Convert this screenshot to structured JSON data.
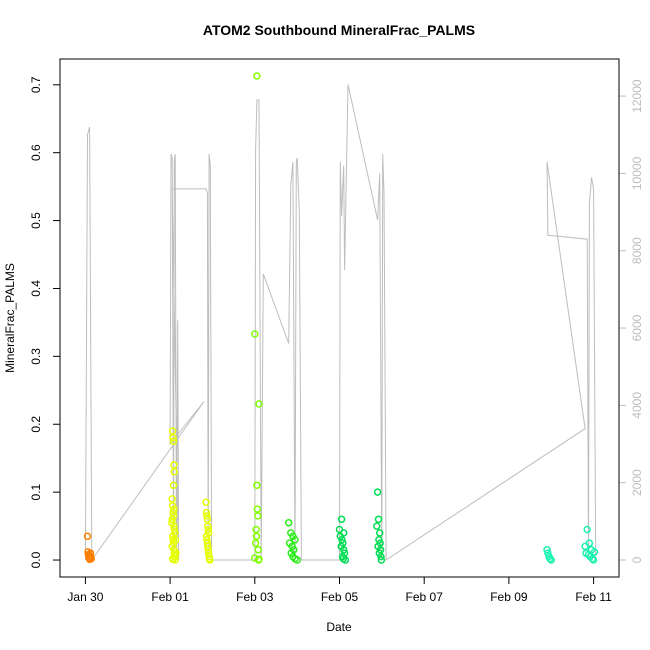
{
  "chart_data": {
    "type": "scatter",
    "title": "ATOM2 Southbound MineralFrac_PALMS",
    "xlabel": "Date",
    "ylabel": "MineralFrac_PALMS",
    "x_unit": "days",
    "x_reference": "Jan 28",
    "xlim": [
      1.4,
      14.6
    ],
    "ylim": [
      -0.025,
      0.738
    ],
    "y2lim": [
      -440,
      12960
    ],
    "x_ticks": [
      {
        "x": 2,
        "label": "Jan 30"
      },
      {
        "x": 4,
        "label": "Feb 01"
      },
      {
        "x": 6,
        "label": "Feb 03"
      },
      {
        "x": 8,
        "label": "Feb 05"
      },
      {
        "x": 10,
        "label": "Feb 07"
      },
      {
        "x": 12,
        "label": "Feb 09"
      },
      {
        "x": 14,
        "label": "Feb 11"
      }
    ],
    "y_ticks": [
      {
        "y": 0.0,
        "label": "0.0"
      },
      {
        "y": 0.1,
        "label": "0.1"
      },
      {
        "y": 0.2,
        "label": "0.2"
      },
      {
        "y": 0.3,
        "label": "0.3"
      },
      {
        "y": 0.4,
        "label": "0.4"
      },
      {
        "y": 0.5,
        "label": "0.5"
      },
      {
        "y": 0.6,
        "label": "0.6"
      },
      {
        "y": 0.7,
        "label": "0.7"
      }
    ],
    "y2_ticks": [
      {
        "y": 0,
        "label": "0"
      },
      {
        "y": 2000,
        "label": "2000"
      },
      {
        "y": 4000,
        "label": "4000"
      },
      {
        "y": 6000,
        "label": "6000"
      },
      {
        "y": 8000,
        "label": "8000"
      },
      {
        "y": 10000,
        "label": "10000"
      },
      {
        "y": 12000,
        "label": "12000"
      }
    ],
    "grid": false,
    "legend": "none",
    "colors": {
      "altitude_line": "#bdbdbd",
      "flight_1": "#ff8000",
      "flight_2": "#e6ff00",
      "flight_3": "#80ff00",
      "flight_4": "#2cee1a",
      "flight_5": "#00dd55",
      "flight_6": "#19f2b0"
    },
    "series": [
      {
        "color": "#ff8000",
        "points": [
          [
            2.05,
            0.035
          ],
          [
            2.06,
            0.012
          ],
          [
            2.07,
            0.008
          ],
          [
            2.08,
            0.005
          ],
          [
            2.09,
            0.003
          ],
          [
            2.1,
            0.001
          ],
          [
            2.11,
            0.006
          ],
          [
            2.12,
            0.01
          ],
          [
            2.13,
            0.004
          ],
          [
            2.14,
            0.002
          ]
        ]
      },
      {
        "color": "#e6ff00",
        "points": [
          [
            4.05,
            0.09
          ],
          [
            4.06,
            0.19
          ],
          [
            4.07,
            0.18
          ],
          [
            4.08,
            0.175
          ],
          [
            4.09,
            0.14
          ],
          [
            4.1,
            0.13
          ],
          [
            4.08,
            0.11
          ],
          [
            4.06,
            0.08
          ],
          [
            4.07,
            0.07
          ],
          [
            4.05,
            0.06
          ],
          [
            4.09,
            0.05
          ],
          [
            4.1,
            0.045
          ],
          [
            4.11,
            0.04
          ],
          [
            4.06,
            0.035
          ],
          [
            4.07,
            0.03
          ],
          [
            4.08,
            0.025
          ],
          [
            4.05,
            0.02
          ],
          [
            4.09,
            0.015
          ],
          [
            4.1,
            0.01
          ],
          [
            4.11,
            0.005
          ],
          [
            4.06,
            0.002
          ],
          [
            4.07,
            0.001
          ],
          [
            4.12,
            0.0
          ],
          [
            4.08,
            0.065
          ],
          [
            4.09,
            0.075
          ],
          [
            4.04,
            0.055
          ],
          [
            4.13,
            0.03
          ],
          [
            4.14,
            0.01
          ],
          [
            4.85,
            0.085
          ],
          [
            4.86,
            0.07
          ],
          [
            4.87,
            0.065
          ],
          [
            4.88,
            0.06
          ],
          [
            4.89,
            0.05
          ],
          [
            4.9,
            0.045
          ],
          [
            4.91,
            0.04
          ],
          [
            4.86,
            0.035
          ],
          [
            4.87,
            0.03
          ],
          [
            4.88,
            0.025
          ],
          [
            4.89,
            0.02
          ],
          [
            4.9,
            0.015
          ],
          [
            4.91,
            0.01
          ],
          [
            4.92,
            0.005
          ],
          [
            4.93,
            0.002
          ],
          [
            4.94,
            0.0
          ]
        ]
      },
      {
        "color": "#80ff00",
        "points": [
          [
            6.0,
            0.333
          ],
          [
            6.05,
            0.713
          ],
          [
            6.1,
            0.23
          ],
          [
            6.05,
            0.11
          ],
          [
            6.06,
            0.075
          ],
          [
            6.07,
            0.065
          ],
          [
            6.03,
            0.045
          ],
          [
            6.04,
            0.035
          ],
          [
            6.02,
            0.025
          ],
          [
            6.08,
            0.015
          ],
          [
            6.0,
            0.003
          ],
          [
            6.09,
            0.0
          ],
          [
            6.1,
            0.001
          ]
        ]
      },
      {
        "color": "#2cee1a",
        "points": [
          [
            6.8,
            0.055
          ],
          [
            6.85,
            0.04
          ],
          [
            6.9,
            0.035
          ],
          [
            6.95,
            0.03
          ],
          [
            6.82,
            0.025
          ],
          [
            6.88,
            0.02
          ],
          [
            6.92,
            0.015
          ],
          [
            6.86,
            0.01
          ],
          [
            6.9,
            0.005
          ],
          [
            6.95,
            0.002
          ],
          [
            7.0,
            0.0
          ]
        ]
      },
      {
        "color": "#00dd55",
        "points": [
          [
            8.0,
            0.045
          ],
          [
            8.05,
            0.06
          ],
          [
            8.1,
            0.04
          ],
          [
            8.02,
            0.035
          ],
          [
            8.06,
            0.03
          ],
          [
            8.08,
            0.025
          ],
          [
            8.04,
            0.02
          ],
          [
            8.1,
            0.015
          ],
          [
            8.12,
            0.01
          ],
          [
            8.07,
            0.005
          ],
          [
            8.09,
            0.002
          ],
          [
            8.14,
            0.0
          ],
          [
            8.9,
            0.1
          ],
          [
            8.92,
            0.06
          ],
          [
            8.95,
            0.04
          ],
          [
            8.88,
            0.05
          ],
          [
            8.93,
            0.03
          ],
          [
            8.96,
            0.025
          ],
          [
            8.91,
            0.02
          ],
          [
            8.97,
            0.015
          ],
          [
            8.94,
            0.01
          ],
          [
            8.98,
            0.005
          ],
          [
            8.99,
            0.0
          ]
        ]
      },
      {
        "color": "#19f2b0",
        "points": [
          [
            12.9,
            0.015
          ],
          [
            12.92,
            0.01
          ],
          [
            12.95,
            0.005
          ],
          [
            12.97,
            0.002
          ],
          [
            13.0,
            0.0
          ],
          [
            13.85,
            0.045
          ],
          [
            13.9,
            0.025
          ],
          [
            13.8,
            0.02
          ],
          [
            13.95,
            0.015
          ],
          [
            13.82,
            0.01
          ],
          [
            13.88,
            0.008
          ],
          [
            13.92,
            0.005
          ],
          [
            13.97,
            0.002
          ],
          [
            14.0,
            0.0
          ],
          [
            14.02,
            0.012
          ]
        ]
      }
    ],
    "altitude": [
      [
        2.0,
        0
      ],
      [
        2.05,
        11000
      ],
      [
        2.1,
        11200
      ],
      [
        2.15,
        0
      ],
      [
        4.8,
        4100
      ],
      [
        4.0,
        3000
      ],
      [
        4.02,
        10500
      ],
      [
        4.05,
        10400
      ],
      [
        4.08,
        100
      ],
      [
        4.1,
        10300
      ],
      [
        4.12,
        10500
      ],
      [
        4.15,
        0
      ],
      [
        4.18,
        6200
      ],
      [
        4.2,
        0
      ],
      [
        4.05,
        9600
      ],
      [
        4.85,
        9600
      ],
      [
        4.88,
        9500
      ],
      [
        4.9,
        0
      ],
      [
        4.92,
        10500
      ],
      [
        4.95,
        10200
      ],
      [
        4.98,
        0
      ],
      [
        6.0,
        0
      ],
      [
        6.02,
        10600
      ],
      [
        6.05,
        11900
      ],
      [
        6.1,
        11900
      ],
      [
        6.15,
        0
      ],
      [
        6.2,
        7400
      ],
      [
        6.8,
        5600
      ],
      [
        6.85,
        9700
      ],
      [
        6.9,
        10300
      ],
      [
        6.95,
        0
      ],
      [
        6.98,
        10300
      ],
      [
        7.0,
        10400
      ],
      [
        7.05,
        9000
      ],
      [
        7.1,
        0
      ],
      [
        8.0,
        0
      ],
      [
        8.02,
        10300
      ],
      [
        8.05,
        8900
      ],
      [
        8.1,
        10200
      ],
      [
        8.12,
        7500
      ],
      [
        8.2,
        12300
      ],
      [
        8.9,
        8800
      ],
      [
        8.95,
        10000
      ],
      [
        9.0,
        0
      ],
      [
        9.02,
        10500
      ],
      [
        9.05,
        9500
      ],
      [
        9.1,
        0
      ],
      [
        13.8,
        3400
      ],
      [
        12.9,
        10300
      ],
      [
        12.92,
        8400
      ],
      [
        13.85,
        8300
      ],
      [
        13.88,
        0
      ],
      [
        13.9,
        9200
      ],
      [
        13.95,
        9900
      ],
      [
        14.0,
        9600
      ],
      [
        14.05,
        0
      ]
    ]
  }
}
